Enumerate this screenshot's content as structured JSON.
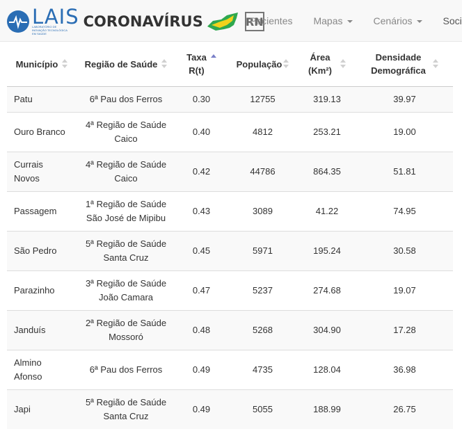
{
  "navbar": {
    "logo_text": "LAIS",
    "logo_subtitle": "LABORATÓRIO DE INOVAÇÃO TECNOLÓGICA EM SAÚDE",
    "brand_title": "CORONAVÍRUS",
    "state_badge": "RN",
    "links": [
      {
        "label": "Pacientes",
        "dropdown": false
      },
      {
        "label": "Mapas",
        "dropdown": true
      },
      {
        "label": "Cenários",
        "dropdown": true
      },
      {
        "label": "Socieda",
        "dropdown": false
      }
    ]
  },
  "table": {
    "columns": [
      {
        "line1": "Município",
        "line2": "",
        "sort": "none"
      },
      {
        "line1": "Região de Saúde",
        "line2": "",
        "sort": "none"
      },
      {
        "line1": "Taxa",
        "line2": "R(t)",
        "sort": "asc"
      },
      {
        "line1": "População",
        "line2": "",
        "sort": "none"
      },
      {
        "line1": "Área",
        "line2": "(Km²)",
        "sort": "none"
      },
      {
        "line1": "Densidade",
        "line2": "Demográfica",
        "sort": "none"
      }
    ],
    "rows": [
      {
        "municipio": "Patu",
        "regiao1": "6ª Pau dos Ferros",
        "regiao2": "",
        "taxa": "0.30",
        "populacao": "12755",
        "area": "319.13",
        "densidade": "39.97"
      },
      {
        "municipio": "Ouro Branco",
        "regiao1": "4ª Região de Saúde",
        "regiao2": "Caico",
        "taxa": "0.40",
        "populacao": "4812",
        "area": "253.21",
        "densidade": "19.00"
      },
      {
        "municipio": "Currais Novos",
        "regiao1": "4ª Região de Saúde",
        "regiao2": "Caico",
        "taxa": "0.42",
        "populacao": "44786",
        "area": "864.35",
        "densidade": "51.81"
      },
      {
        "municipio": "Passagem",
        "regiao1": "1ª Região de Saúde",
        "regiao2": "São José de Mipibu",
        "taxa": "0.43",
        "populacao": "3089",
        "area": "41.22",
        "densidade": "74.95"
      },
      {
        "municipio": "São Pedro",
        "regiao1": "5ª Região de Saúde",
        "regiao2": "Santa Cruz",
        "taxa": "0.45",
        "populacao": "5971",
        "area": "195.24",
        "densidade": "30.58"
      },
      {
        "municipio": "Parazinho",
        "regiao1": "3ª Região de Saúde",
        "regiao2": "João Camara",
        "taxa": "0.47",
        "populacao": "5237",
        "area": "274.68",
        "densidade": "19.07"
      },
      {
        "municipio": "Janduís",
        "regiao1": "2ª Região de Saúde",
        "regiao2": "Mossoró",
        "taxa": "0.48",
        "populacao": "5268",
        "area": "304.90",
        "densidade": "17.28"
      },
      {
        "municipio": "Almino Afonso",
        "regiao1": "6ª Pau dos Ferros",
        "regiao2": "",
        "taxa": "0.49",
        "populacao": "4735",
        "area": "128.04",
        "densidade": "36.98"
      },
      {
        "municipio": "Japi",
        "regiao1": "5ª Região de Saúde",
        "regiao2": "Santa Cruz",
        "taxa": "0.49",
        "populacao": "5055",
        "area": "188.99",
        "densidade": "26.75"
      }
    ]
  },
  "colors": {
    "brand_blue": "#2a6db4",
    "rn_green": "#2fa84f",
    "rn_yellow": "#f2d21b",
    "sort_active": "#7a80c8"
  }
}
